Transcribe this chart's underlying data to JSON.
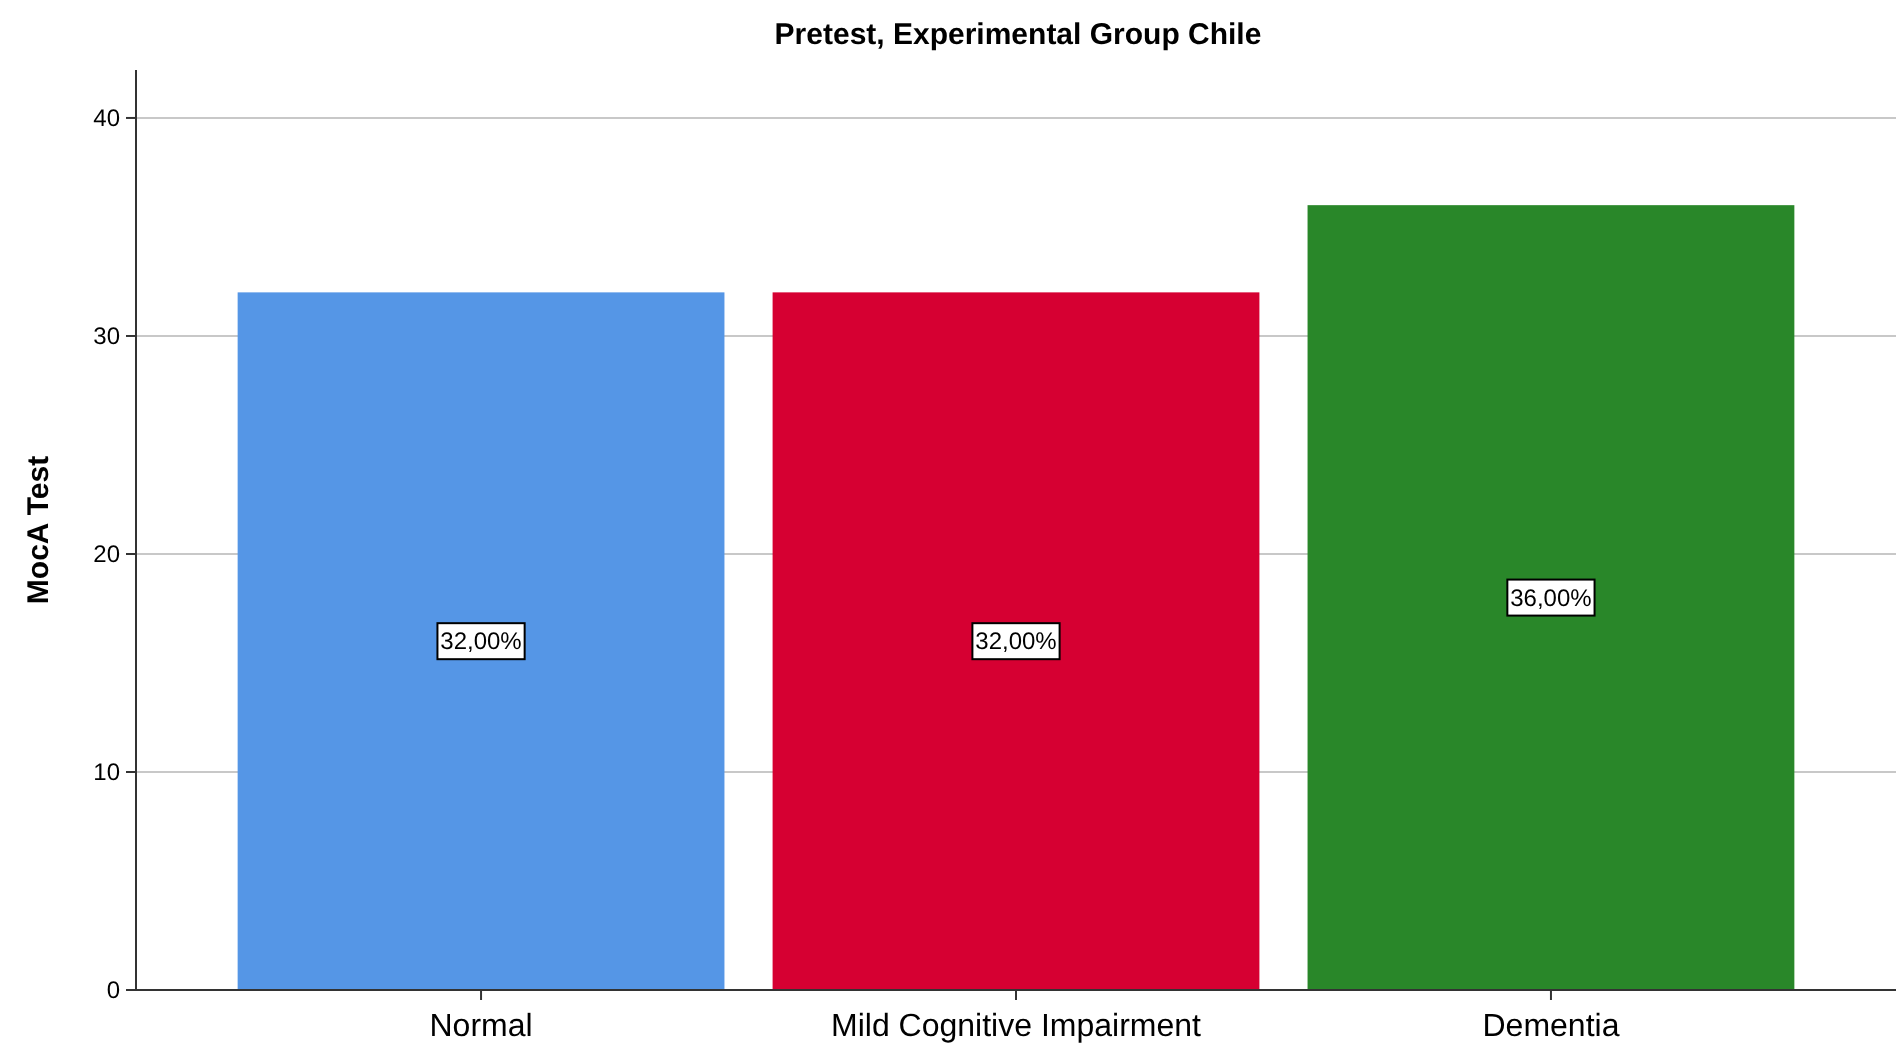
{
  "chart_data": {
    "type": "bar",
    "title": "Pretest, Experimental Group Chile",
    "ylabel": "MocA Test",
    "categories": [
      "Normal",
      "Mild Cognitive Impairment",
      "Dementia"
    ],
    "values": [
      32,
      32,
      36
    ],
    "colors": [
      "#5596e6",
      "#d60032",
      "#298729"
    ],
    "value_labels": [
      "32,00%",
      "32,00%",
      "36,00%"
    ],
    "ylim": [
      0,
      42.2
    ],
    "yticks": [
      0,
      10,
      20,
      30,
      40
    ],
    "grid": "y"
  }
}
